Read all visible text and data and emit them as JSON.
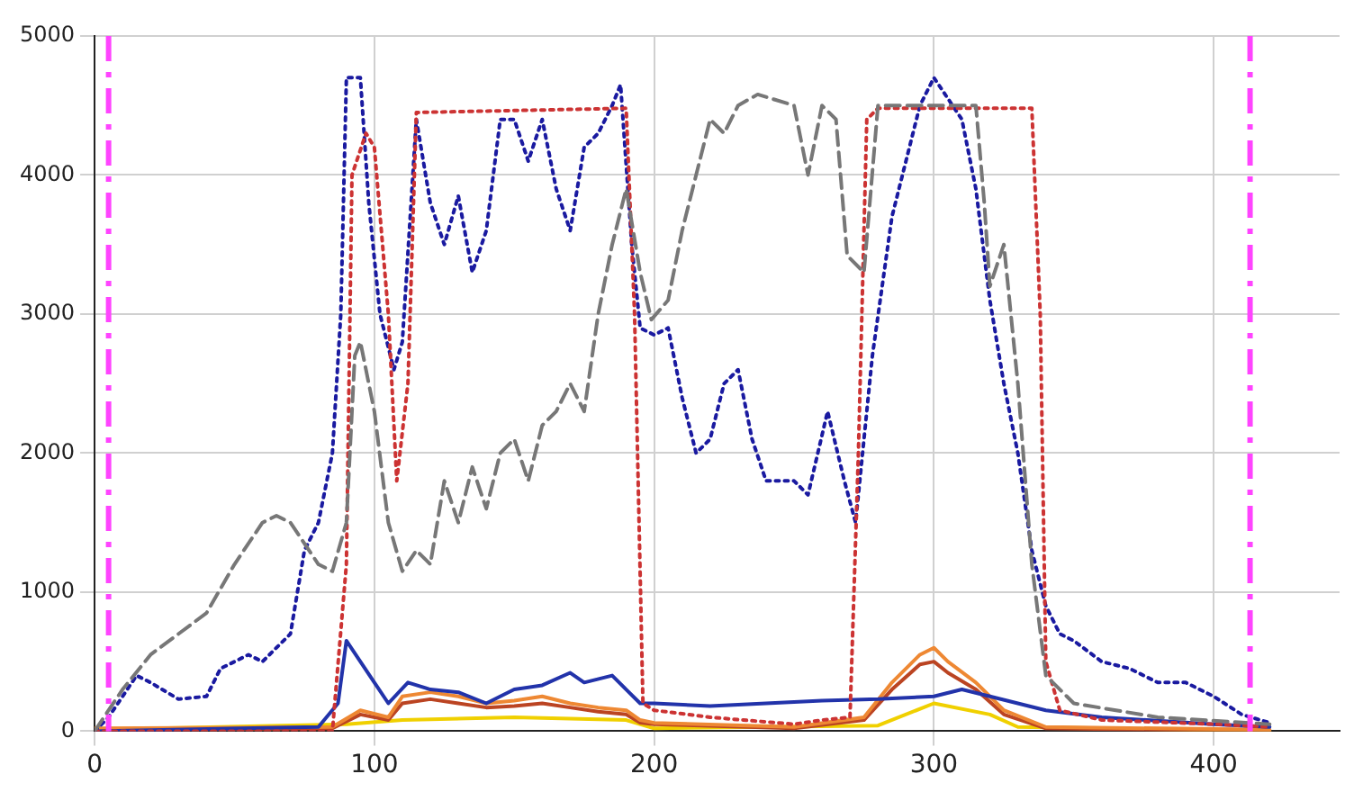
{
  "chart_data": {
    "type": "line",
    "xlim": [
      0,
      445
    ],
    "xticks": [
      0,
      100,
      200,
      300,
      400
    ],
    "ylim": [
      0,
      5000
    ],
    "yticks": [
      0,
      1000,
      2000,
      3000,
      4000,
      5000
    ],
    "grid": true,
    "marker": "none",
    "ref_lines": [
      {
        "axis": "x",
        "value": 5,
        "color": "#ff44ff",
        "line_style": "dashed"
      },
      {
        "axis": "x",
        "value": 413,
        "color": "#ff44ff",
        "line_style": "dashed"
      }
    ],
    "series": [
      {
        "color": "#777777",
        "line_style": "dashed",
        "x": [
          0,
          10,
          20,
          30,
          40,
          50,
          60,
          65,
          70,
          80,
          85,
          90,
          93,
          95,
          100,
          105,
          110,
          115,
          120,
          125,
          130,
          135,
          140,
          145,
          150,
          155,
          160,
          165,
          170,
          175,
          180,
          185,
          190,
          195,
          199,
          205,
          210,
          215,
          220,
          225,
          230,
          237,
          250,
          255,
          260,
          265,
          269,
          275,
          280,
          300,
          315,
          318,
          320,
          325,
          330,
          335,
          340,
          350,
          380,
          420
        ],
        "values": [
          0,
          300,
          550,
          700,
          850,
          1200,
          1500,
          1550,
          1500,
          1200,
          1150,
          1500,
          2700,
          2800,
          2300,
          1500,
          1150,
          1300,
          1200,
          1800,
          1500,
          1900,
          1600,
          2000,
          2100,
          1800,
          2200,
          2300,
          2500,
          2300,
          3000,
          3500,
          3900,
          3300,
          2960,
          3100,
          3600,
          4000,
          4400,
          4300,
          4500,
          4580,
          4500,
          4000,
          4500,
          4400,
          3420,
          3300,
          4500,
          4500,
          4500,
          3800,
          3200,
          3500,
          2500,
          1200,
          400,
          200,
          100,
          50
        ]
      },
      {
        "color": "#cc3333",
        "line_style": "dotted",
        "x": [
          0,
          85,
          90,
          92,
          97,
          100,
          105,
          108,
          112,
          115,
          190,
          193,
          196,
          200,
          220,
          250,
          260,
          270,
          273,
          276,
          280,
          335,
          338,
          340,
          345,
          360,
          400,
          420
        ],
        "values": [
          0,
          0,
          1200,
          4000,
          4300,
          4200,
          3000,
          1800,
          2500,
          4450,
          4480,
          3000,
          200,
          150,
          100,
          50,
          80,
          100,
          2000,
          4400,
          4480,
          4480,
          3000,
          500,
          150,
          80,
          50,
          30
        ]
      },
      {
        "color": "#1a1aa0",
        "line_style": "dotted",
        "x": [
          0,
          5,
          15,
          20,
          30,
          40,
          45,
          55,
          60,
          70,
          75,
          80,
          85,
          88,
          90,
          95,
          98,
          102,
          107,
          110,
          115,
          120,
          125,
          130,
          135,
          140,
          145,
          150,
          155,
          160,
          165,
          170,
          175,
          180,
          185,
          188,
          192,
          195,
          200,
          205,
          210,
          215,
          220,
          225,
          230,
          235,
          240,
          250,
          255,
          262,
          268,
          272,
          278,
          285,
          295,
          300,
          305,
          310,
          315,
          320,
          325,
          330,
          335,
          340,
          345,
          350,
          360,
          370,
          380,
          390,
          400,
          410,
          420
        ],
        "values": [
          0,
          100,
          400,
          350,
          230,
          250,
          450,
          550,
          500,
          700,
          1300,
          1500,
          2000,
          3000,
          4700,
          4700,
          3800,
          3000,
          2600,
          2800,
          4400,
          3800,
          3500,
          3850,
          3300,
          3600,
          4400,
          4400,
          4100,
          4400,
          3900,
          3600,
          4200,
          4300,
          4500,
          4650,
          3500,
          2900,
          2850,
          2900,
          2400,
          2000,
          2100,
          2500,
          2600,
          2100,
          1800,
          1800,
          1700,
          2300,
          1800,
          1500,
          2700,
          3700,
          4500,
          4700,
          4550,
          4400,
          3900,
          3100,
          2500,
          2000,
          1300,
          900,
          700,
          650,
          500,
          450,
          350,
          350,
          250,
          120,
          60
        ]
      },
      {
        "color": "#2233aa",
        "line_style": "solid",
        "x": [
          0,
          80,
          87,
          90,
          95,
          100,
          105,
          112,
          120,
          130,
          140,
          150,
          160,
          170,
          175,
          185,
          190,
          195,
          200,
          220,
          240,
          260,
          280,
          300,
          310,
          320,
          340,
          360,
          400,
          420
        ],
        "values": [
          0,
          30,
          200,
          650,
          500,
          350,
          200,
          350,
          300,
          280,
          200,
          300,
          330,
          420,
          350,
          400,
          300,
          200,
          200,
          180,
          200,
          220,
          230,
          250,
          300,
          250,
          150,
          100,
          50,
          30
        ]
      },
      {
        "color": "#ee8833",
        "line_style": "solid",
        "x": [
          0,
          85,
          95,
          105,
          110,
          120,
          130,
          140,
          150,
          160,
          170,
          180,
          190,
          195,
          200,
          250,
          275,
          285,
          295,
          300,
          305,
          315,
          325,
          340,
          420
        ],
        "values": [
          20,
          30,
          150,
          100,
          250,
          280,
          250,
          200,
          220,
          250,
          200,
          170,
          150,
          80,
          60,
          30,
          100,
          350,
          550,
          600,
          500,
          350,
          150,
          30,
          10
        ]
      },
      {
        "color": "#bb4422",
        "line_style": "solid",
        "x": [
          0,
          85,
          95,
          105,
          110,
          120,
          130,
          140,
          150,
          160,
          170,
          180,
          190,
          195,
          200,
          250,
          275,
          285,
          295,
          300,
          305,
          315,
          325,
          340,
          420
        ],
        "values": [
          10,
          20,
          120,
          80,
          200,
          230,
          200,
          170,
          180,
          200,
          170,
          140,
          120,
          60,
          50,
          20,
          80,
          300,
          480,
          500,
          420,
          300,
          120,
          20,
          0
        ]
      },
      {
        "color": "#f0d000",
        "line_style": "solid",
        "x": [
          0,
          90,
          110,
          150,
          190,
          200,
          280,
          300,
          320,
          330,
          420
        ],
        "values": [
          10,
          50,
          80,
          100,
          80,
          20,
          40,
          200,
          120,
          30,
          0
        ]
      }
    ]
  }
}
